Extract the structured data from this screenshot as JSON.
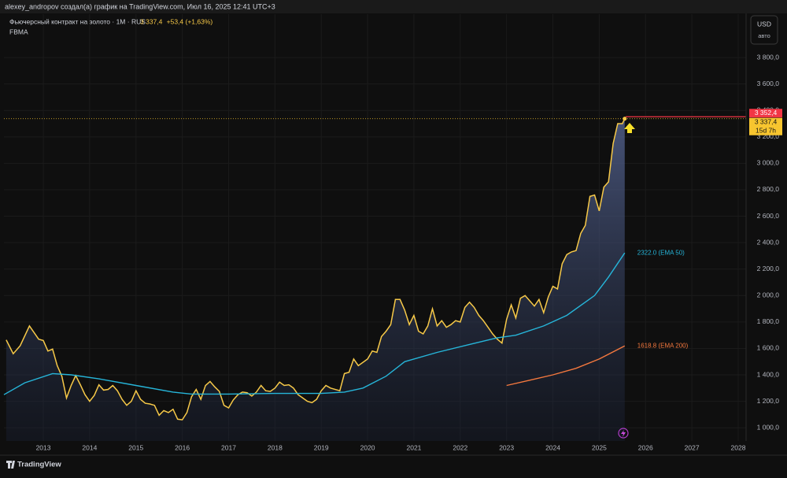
{
  "header": {
    "text": "alexey_andropov создал(а) график на TradingView.com, Июл 16, 2025 12:41 UTC+3"
  },
  "chart_data": {
    "type": "line",
    "indicator": "FBMA",
    "change_label": "+53,4 (+1,63%)",
    "currency": "USD",
    "scale_mode": "авто",
    "countdown": "15d 7h",
    "grid": true,
    "series": [
      {
        "name": "Фьючерсный контракт на золото · 1M · RUS",
        "color": "#f7c948",
        "area": true,
        "x": [
          2012.2,
          2012.35,
          2012.5,
          2012.7,
          2012.8,
          2012.9,
          2013.0,
          2013.1,
          2013.2,
          2013.3,
          2013.4,
          2013.5,
          2013.6,
          2013.7,
          2013.8,
          2013.9,
          2014.0,
          2014.1,
          2014.2,
          2014.3,
          2014.4,
          2014.5,
          2014.6,
          2014.7,
          2014.8,
          2014.9,
          2015.0,
          2015.1,
          2015.2,
          2015.3,
          2015.4,
          2015.5,
          2015.6,
          2015.7,
          2015.8,
          2015.9,
          2016.0,
          2016.1,
          2016.2,
          2016.3,
          2016.4,
          2016.5,
          2016.6,
          2016.7,
          2016.8,
          2016.9,
          2017.0,
          2017.1,
          2017.2,
          2017.3,
          2017.4,
          2017.5,
          2017.6,
          2017.7,
          2017.8,
          2017.9,
          2018.0,
          2018.1,
          2018.2,
          2018.3,
          2018.4,
          2018.5,
          2018.6,
          2018.7,
          2018.8,
          2018.9,
          2019.0,
          2019.1,
          2019.2,
          2019.4,
          2019.5,
          2019.6,
          2019.7,
          2019.8,
          2020.0,
          2020.1,
          2020.2,
          2020.3,
          2020.4,
          2020.5,
          2020.6,
          2020.7,
          2020.8,
          2020.9,
          2021.0,
          2021.1,
          2021.2,
          2021.3,
          2021.4,
          2021.5,
          2021.6,
          2021.7,
          2021.8,
          2021.9,
          2022.0,
          2022.1,
          2022.2,
          2022.3,
          2022.4,
          2022.5,
          2022.6,
          2022.7,
          2022.8,
          2022.9,
          2023.0,
          2023.1,
          2023.2,
          2023.3,
          2023.4,
          2023.5,
          2023.6,
          2023.7,
          2023.8,
          2023.9,
          2024.0,
          2024.1,
          2024.2,
          2024.3,
          2024.4,
          2024.5,
          2024.6,
          2024.7,
          2024.8,
          2024.9,
          2025.0,
          2025.1,
          2025.2,
          2025.3,
          2025.4,
          2025.5,
          2025.55
        ],
        "values": [
          1665,
          1560,
          1620,
          1770,
          1720,
          1670,
          1660,
          1580,
          1595,
          1470,
          1390,
          1225,
          1320,
          1395,
          1325,
          1250,
          1200,
          1245,
          1325,
          1285,
          1290,
          1320,
          1280,
          1215,
          1170,
          1200,
          1280,
          1215,
          1185,
          1180,
          1170,
          1095,
          1130,
          1115,
          1140,
          1065,
          1060,
          1115,
          1235,
          1290,
          1215,
          1320,
          1350,
          1310,
          1275,
          1170,
          1150,
          1210,
          1250,
          1270,
          1265,
          1240,
          1270,
          1320,
          1280,
          1275,
          1300,
          1345,
          1320,
          1325,
          1300,
          1250,
          1225,
          1200,
          1190,
          1215,
          1280,
          1320,
          1300,
          1280,
          1410,
          1420,
          1520,
          1470,
          1520,
          1580,
          1570,
          1690,
          1730,
          1780,
          1970,
          1970,
          1890,
          1780,
          1850,
          1730,
          1710,
          1770,
          1900,
          1770,
          1810,
          1760,
          1780,
          1810,
          1800,
          1910,
          1950,
          1910,
          1850,
          1810,
          1760,
          1710,
          1670,
          1640,
          1820,
          1930,
          1830,
          1980,
          2000,
          1960,
          1920,
          1970,
          1870,
          1990,
          2070,
          2050,
          2240,
          2310,
          2330,
          2340,
          2470,
          2530,
          2750,
          2760,
          2640,
          2820,
          2860,
          3150,
          3300,
          3300,
          3337.4
        ]
      },
      {
        "name": "2322.0 (EMA 50)",
        "color": "#26b5d9",
        "x": [
          2012.15,
          2012.6,
          2013.2,
          2013.6,
          2014.2,
          2015.0,
          2015.8,
          2016.2,
          2017.0,
          2018.0,
          2019.0,
          2019.5,
          2019.9,
          2020.4,
          2020.8,
          2021.5,
          2022.2,
          2022.8,
          2023.2,
          2023.8,
          2024.3,
          2024.9,
          2025.2,
          2025.55
        ],
        "values": [
          1250,
          1340,
          1410,
          1400,
          1370,
          1320,
          1270,
          1255,
          1255,
          1260,
          1260,
          1270,
          1300,
          1390,
          1500,
          1570,
          1630,
          1680,
          1700,
          1770,
          1850,
          2000,
          2140,
          2322
        ]
      },
      {
        "name": "1618.8 (EMA 200)",
        "color": "#f4783e",
        "x": [
          2023.0,
          2023.5,
          2024.0,
          2024.5,
          2025.0,
          2025.55
        ],
        "values": [
          1320,
          1360,
          1400,
          1450,
          1520,
          1618.8
        ]
      }
    ],
    "price_markers": [
      {
        "value": 3352.4,
        "label": "3 352,4",
        "color": "#f23645"
      },
      {
        "value": 3337.4,
        "label": "3 337,4",
        "color": "#f7c52f"
      }
    ],
    "xlim": [
      2012.15,
      2028.17
    ],
    "xticks": [
      2013,
      2014,
      2015,
      2016,
      2017,
      2018,
      2019,
      2020,
      2021,
      2022,
      2023,
      2024,
      2025,
      2026,
      2027,
      2028
    ],
    "ylim": [
      900,
      4128
    ],
    "yticks": [
      {
        "value": 1000,
        "label": "1 000,0"
      },
      {
        "value": 1200,
        "label": "1 200,0"
      },
      {
        "value": 1400,
        "label": "1 400,0"
      },
      {
        "value": 1600,
        "label": "1 600,0"
      },
      {
        "value": 1800,
        "label": "1 800,0"
      },
      {
        "value": 2000,
        "label": "2 000,0"
      },
      {
        "value": 2200,
        "label": "2 200,0"
      },
      {
        "value": 2400,
        "label": "2 400,0"
      },
      {
        "value": 2600,
        "label": "2 600,0"
      },
      {
        "value": 2800,
        "label": "2 800,0"
      },
      {
        "value": 3000,
        "label": "3 000,0"
      },
      {
        "value": 3200,
        "label": "3 200,0"
      },
      {
        "value": 3400,
        "label": "3 400,0"
      },
      {
        "value": 3600,
        "label": "3 600,0"
      },
      {
        "value": 3800,
        "label": "3 800,0"
      }
    ]
  },
  "footer": {
    "brand": "TradingView"
  }
}
